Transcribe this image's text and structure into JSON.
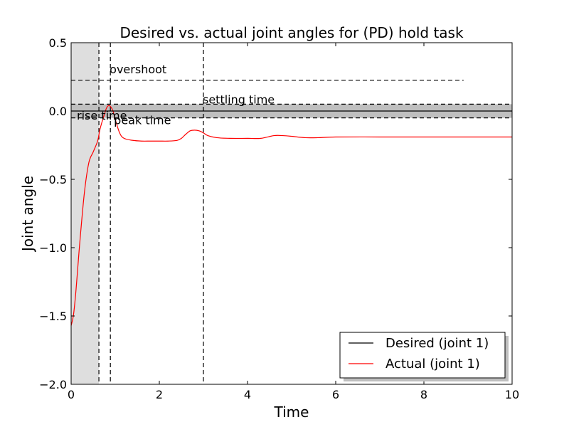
{
  "chart_data": {
    "type": "line",
    "title": "Desired vs. actual joint angles for (PD) hold task",
    "xlabel": "Time",
    "ylabel": "Joint angle",
    "xlim": [
      0,
      10
    ],
    "ylim": [
      -2.0,
      0.5
    ],
    "xticks": [
      0,
      2,
      4,
      6,
      8,
      10
    ],
    "xtick_labels": [
      "0",
      "2",
      "4",
      "6",
      "8",
      "10"
    ],
    "yticks": [
      0.5,
      0.0,
      -0.5,
      -1.0,
      -1.5,
      -2.0
    ],
    "ytick_labels": [
      "0.5",
      "0.0",
      "−0.5",
      "−1.0",
      "−1.5",
      "−2.0"
    ],
    "grid": false,
    "legend": {
      "position": "lower-right",
      "entries": [
        {
          "name": "Desired (joint 1)",
          "color": "#000000"
        },
        {
          "name": "Actual (joint 1)",
          "color": "#ff0000"
        }
      ]
    },
    "series": [
      {
        "name": "Actual (joint 1)",
        "color": "#ff0000",
        "x": [
          0.0,
          0.05,
          0.1,
          0.15,
          0.2,
          0.3,
          0.4,
          0.5,
          0.6,
          0.65,
          0.7,
          0.75,
          0.8,
          0.85,
          0.9,
          0.95,
          1.0,
          1.1,
          1.2,
          1.4,
          1.6,
          1.8,
          2.0,
          2.2,
          2.4,
          2.5,
          2.6,
          2.7,
          2.8,
          2.9,
          3.0,
          3.1,
          3.3,
          3.6,
          4.0,
          4.3,
          4.6,
          4.8,
          5.0,
          5.3,
          5.6,
          6.0,
          7.0,
          8.0,
          9.0,
          10.0
        ],
        "y": [
          -1.57,
          -1.5,
          -1.35,
          -1.15,
          -0.95,
          -0.6,
          -0.38,
          -0.3,
          -0.22,
          -0.14,
          -0.08,
          -0.03,
          0.02,
          0.04,
          0.03,
          0.0,
          -0.06,
          -0.16,
          -0.2,
          -0.215,
          -0.22,
          -0.22,
          -0.22,
          -0.22,
          -0.215,
          -0.2,
          -0.17,
          -0.145,
          -0.14,
          -0.145,
          -0.16,
          -0.18,
          -0.195,
          -0.2,
          -0.2,
          -0.2,
          -0.18,
          -0.18,
          -0.185,
          -0.195,
          -0.195,
          -0.19,
          -0.19,
          -0.19,
          -0.19,
          -0.19
        ]
      },
      {
        "name": "Desired (joint 1)",
        "color": "#000000",
        "x": [
          0,
          10
        ],
        "y": [
          0.0,
          0.0
        ]
      }
    ],
    "annotations": {
      "rise_time": {
        "label": "rise time",
        "x": 0.63
      },
      "peak_time": {
        "label": "peak time",
        "x": 0.89
      },
      "settling_time": {
        "label": "settling time",
        "x": 3.0
      },
      "overshoot": {
        "label": "overshoot",
        "y": 0.225,
        "x_end": 8.9
      },
      "settling_band": [
        -0.05,
        0.05
      ],
      "rise_region": [
        0,
        0.63
      ]
    }
  }
}
